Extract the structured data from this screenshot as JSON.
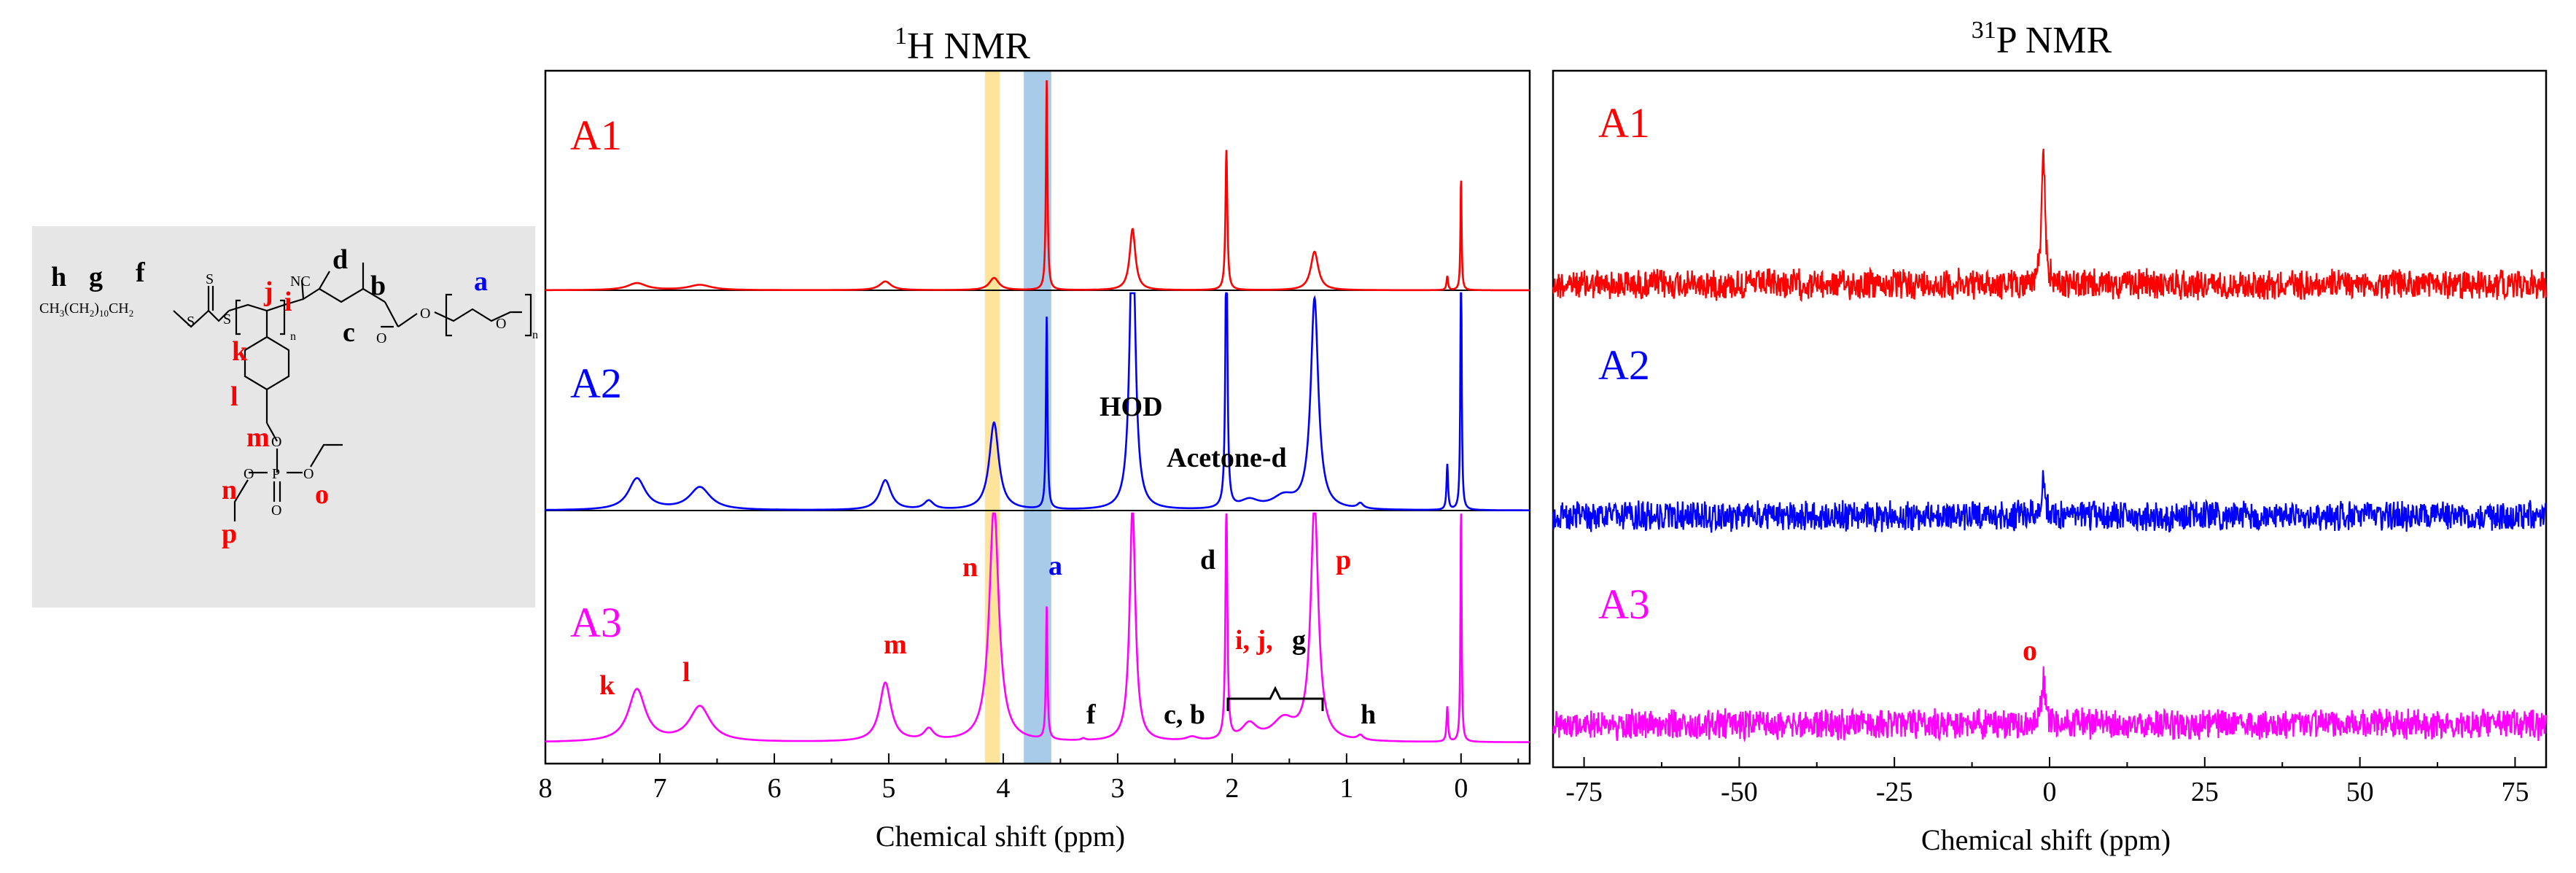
{
  "colors": {
    "A1": "#ff0000",
    "A2": "#0000ff",
    "A3": "#ff00ff",
    "label_red": "#ff0000",
    "label_blue": "#0000ff",
    "label_black": "#000000",
    "highlight_yellow": "#fde49a",
    "highlight_blue": "#a9cbea",
    "structure_bg": "#e6e6e6"
  },
  "structure": {
    "formula_text": "CH3(CH2)10CH2",
    "formula_sub_3": "3",
    "formula_sub_2": "2",
    "formula_sub_10": "10",
    "formula_ch": "CH",
    "formula_ch2": "CH",
    "nitrile": "NC",
    "sub_n1": "n",
    "sub_n2": "n",
    "sub_n3": "n",
    "atom_s1": "S",
    "atom_s2": "S",
    "atom_s3": "S",
    "atom_o1": "O",
    "atom_o2": "O",
    "atom_o3": "O",
    "atom_o4": "O",
    "atom_o5": "O",
    "atom_o6": "O",
    "atom_o7": "O",
    "atom_p": "P",
    "labels": {
      "h": "h",
      "g": "g",
      "f": "f",
      "d": "d",
      "b": "b",
      "c": "c",
      "a": "a",
      "j": "j",
      "i": "i",
      "k": "k",
      "l": "l",
      "m": "m",
      "n": "n",
      "o": "o",
      "p": "p"
    }
  },
  "h_nmr": {
    "title_sup": "1",
    "title": "H NMR",
    "xlabel": "Chemical shift (ppm)",
    "traces": [
      "A1",
      "A2",
      "A3"
    ],
    "annotations": {
      "HOD": "HOD",
      "acetone": "Acetone-d",
      "k": "k",
      "l": "l",
      "m": "m",
      "n": "n",
      "a": "a",
      "d": "d",
      "p": "p",
      "f": "f",
      "cb": "c, b",
      "h": "h",
      "ijg_red": "i, j,",
      "ijg_black": "g"
    }
  },
  "p_nmr": {
    "title_sup": "31",
    "title": "P NMR",
    "xlabel": "Chemical shift (ppm)",
    "traces": [
      "A1",
      "A2",
      "A3"
    ],
    "annotation_o": "o"
  },
  "chart_data": [
    {
      "type": "line",
      "title": "1H NMR",
      "xlabel": "Chemical shift (ppm)",
      "ylabel": "",
      "xlim": [
        8,
        -0.6
      ],
      "x_reversed": true,
      "xticks": [
        8,
        7,
        6,
        5,
        4,
        3,
        2,
        1,
        0
      ],
      "highlight_bands_ppm": [
        [
          4.03,
          4.16
        ],
        [
          3.58,
          3.82
        ]
      ],
      "series": [
        {
          "name": "A1",
          "peaks": [
            {
              "ppm": 7.2,
              "height": 0.04,
              "width": 0.1
            },
            {
              "ppm": 6.65,
              "height": 0.03,
              "width": 0.12
            },
            {
              "ppm": 5.03,
              "height": 0.05,
              "width": 0.06
            },
            {
              "ppm": 4.08,
              "height": 0.07,
              "width": 0.05
            },
            {
              "ppm": 3.62,
              "height": 1.2,
              "width": 0.008
            },
            {
              "ppm": 2.87,
              "height": 0.35,
              "width": 0.03
            },
            {
              "ppm": 2.05,
              "height": 0.8,
              "width": 0.01
            },
            {
              "ppm": 1.28,
              "height": 0.22,
              "width": 0.04
            },
            {
              "ppm": 0.12,
              "height": 0.08,
              "width": 0.008
            },
            {
              "ppm": 0.0,
              "height": 0.65,
              "width": 0.006
            }
          ]
        },
        {
          "name": "A2",
          "peaks": [
            {
              "ppm": 7.2,
              "height": 0.18,
              "width": 0.09
            },
            {
              "ppm": 6.65,
              "height": 0.13,
              "width": 0.11
            },
            {
              "ppm": 5.03,
              "height": 0.17,
              "width": 0.06
            },
            {
              "ppm": 4.65,
              "height": 0.05,
              "width": 0.05
            },
            {
              "ppm": 4.08,
              "height": 0.5,
              "width": 0.05
            },
            {
              "ppm": 3.62,
              "height": 1.1,
              "width": 0.008
            },
            {
              "ppm": 2.87,
              "height": 1.7,
              "width": 0.03
            },
            {
              "ppm": 2.05,
              "height": 1.7,
              "width": 0.01
            },
            {
              "ppm": 1.85,
              "height": 0.05,
              "width": 0.1
            },
            {
              "ppm": 1.55,
              "height": 0.07,
              "width": 0.12
            },
            {
              "ppm": 1.28,
              "height": 1.2,
              "width": 0.04
            },
            {
              "ppm": 0.88,
              "height": 0.03,
              "width": 0.03
            },
            {
              "ppm": 0.12,
              "height": 0.26,
              "width": 0.008
            },
            {
              "ppm": 0.0,
              "height": 1.7,
              "width": 0.006
            }
          ]
        },
        {
          "name": "A3",
          "peaks": [
            {
              "ppm": 7.2,
              "height": 0.55,
              "width": 0.09
            },
            {
              "ppm": 6.65,
              "height": 0.37,
              "width": 0.11
            },
            {
              "ppm": 5.03,
              "height": 0.62,
              "width": 0.06
            },
            {
              "ppm": 4.65,
              "height": 0.12,
              "width": 0.05
            },
            {
              "ppm": 4.08,
              "height": 2.5,
              "width": 0.05
            },
            {
              "ppm": 3.62,
              "height": 1.4,
              "width": 0.008
            },
            {
              "ppm": 3.3,
              "height": 0.02,
              "width": 0.02
            },
            {
              "ppm": 2.87,
              "height": 2.5,
              "width": 0.03
            },
            {
              "ppm": 2.35,
              "height": 0.04,
              "width": 0.06
            },
            {
              "ppm": 2.05,
              "height": 2.5,
              "width": 0.01
            },
            {
              "ppm": 1.85,
              "height": 0.17,
              "width": 0.08
            },
            {
              "ppm": 1.55,
              "height": 0.22,
              "width": 0.12
            },
            {
              "ppm": 1.28,
              "height": 2.5,
              "width": 0.04
            },
            {
              "ppm": 0.88,
              "height": 0.05,
              "width": 0.03
            },
            {
              "ppm": 0.12,
              "height": 0.37,
              "width": 0.008
            },
            {
              "ppm": 0.0,
              "height": 2.5,
              "width": 0.006
            }
          ]
        }
      ]
    },
    {
      "type": "line",
      "title": "31P NMR",
      "xlabel": "Chemical shift (ppm)",
      "ylabel": "",
      "xlim": [
        -80,
        80
      ],
      "xticks": [
        -75,
        -50,
        -25,
        0,
        25,
        50,
        75
      ],
      "series": [
        {
          "name": "A1",
          "peaks": [
            {
              "ppm": -1.0,
              "height": 1.0,
              "width": 0.35
            }
          ]
        },
        {
          "name": "A2",
          "peaks": [
            {
              "ppm": -1.0,
              "height": 0.55,
              "width": 0.35
            }
          ]
        },
        {
          "name": "A3",
          "peaks": [
            {
              "ppm": -1.0,
              "height": 0.62,
              "width": 0.35
            }
          ]
        }
      ]
    }
  ]
}
